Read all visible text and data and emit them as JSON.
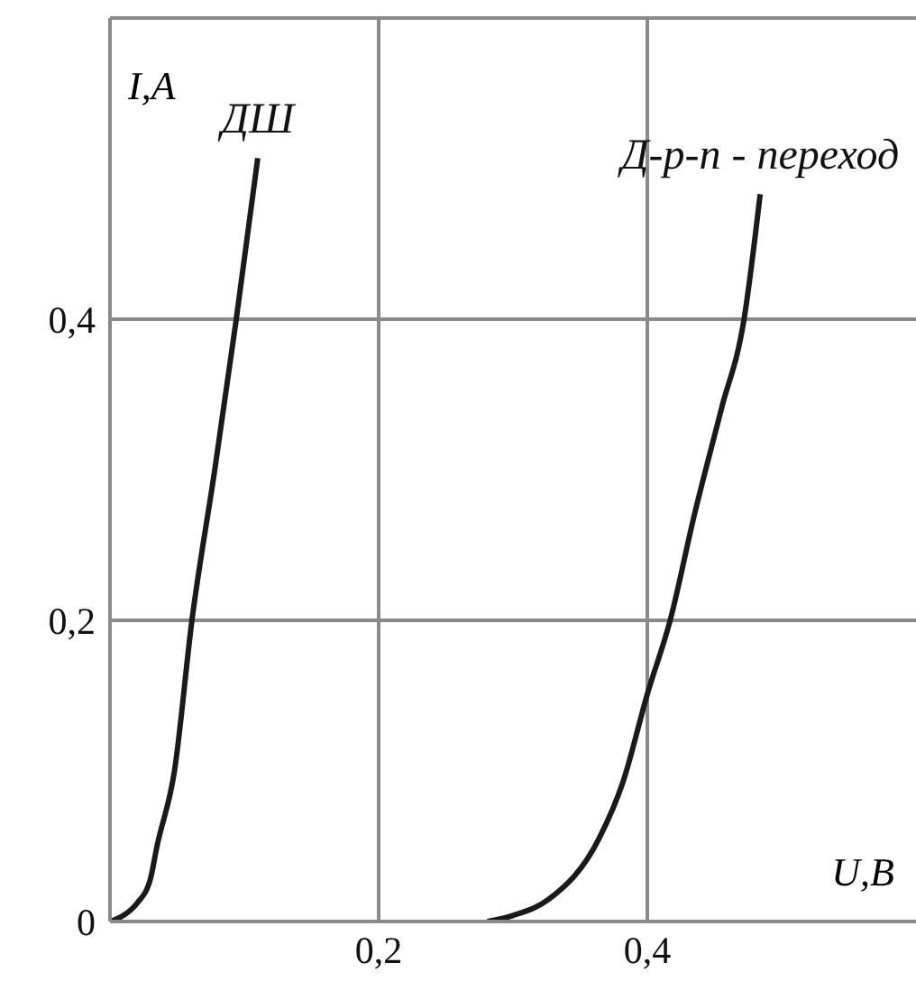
{
  "chart_data": {
    "type": "line",
    "xlabel": "U,B",
    "ylabel": "I,A",
    "xlim": [
      0,
      0.6
    ],
    "ylim": [
      0,
      0.6
    ],
    "xticks": [
      {
        "value": 0.2,
        "label": "0,2"
      },
      {
        "value": 0.4,
        "label": "0,4"
      }
    ],
    "yticks": [
      0,
      {
        "value": 0.2,
        "label": "0,2"
      },
      {
        "value": 0.4,
        "label": "0,4"
      },
      {
        "value": 0.6,
        "label": null
      }
    ],
    "grid": true,
    "marker": "none",
    "line_style": "solid",
    "series": [
      {
        "name": "ДШ",
        "color": "#1a1a1a",
        "x": [
          0,
          0.01,
          0.02,
          0.03,
          0.035,
          0.048,
          0.061,
          0.078,
          0.094,
          0.11
        ],
        "values": [
          0,
          0.004,
          0.012,
          0.028,
          0.05,
          0.1,
          0.2,
          0.3,
          0.4,
          0.507
        ]
      },
      {
        "name": "Д-р-n - переход",
        "color": "#1a1a1a",
        "x": [
          0.281,
          0.3,
          0.327,
          0.364,
          0.382,
          0.4,
          0.417,
          0.435,
          0.455,
          0.472,
          0.484
        ],
        "values": [
          0,
          0.004,
          0.015,
          0.055,
          0.093,
          0.151,
          0.2,
          0.27,
          0.34,
          0.4,
          0.483
        ]
      }
    ]
  }
}
